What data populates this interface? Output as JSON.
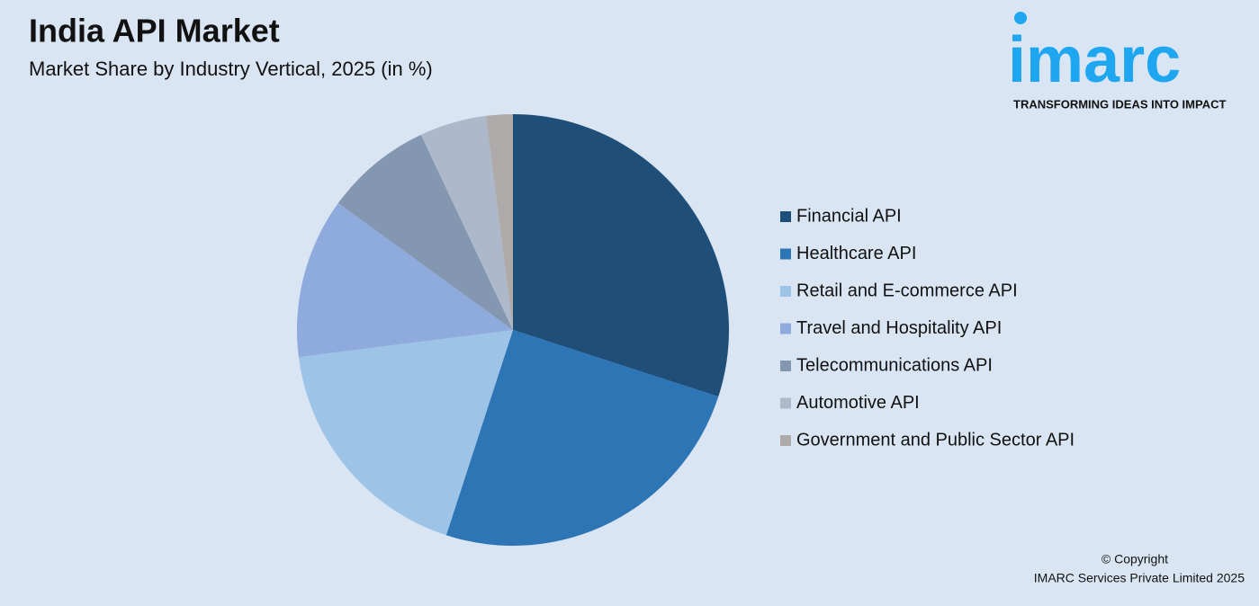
{
  "chart_data": {
    "type": "pie",
    "title": "India API Market",
    "subtitle": "Market Share by Industry Vertical, 2025 (in %)",
    "categories": [
      "Financial API",
      "Healthcare API",
      "Retail and E-commerce API",
      "Travel and Hospitality API",
      "Telecommunications API",
      "Automotive API",
      "Government and Public Sector API"
    ],
    "values": [
      30,
      25,
      18,
      12,
      8,
      5,
      2
    ],
    "colors": [
      "#1f4e79",
      "#2e75b6",
      "#9dc3e6",
      "#8faadc",
      "#8497b0",
      "#adb9ca",
      "#aeaaaa"
    ],
    "legend": "right"
  },
  "logo": {
    "name": "imarc",
    "tagline": "TRANSFORMING IDEAS INTO IMPACT"
  },
  "footer": {
    "copyright": "© Copyright",
    "company": "IMARC Services Private Limited 2025"
  }
}
